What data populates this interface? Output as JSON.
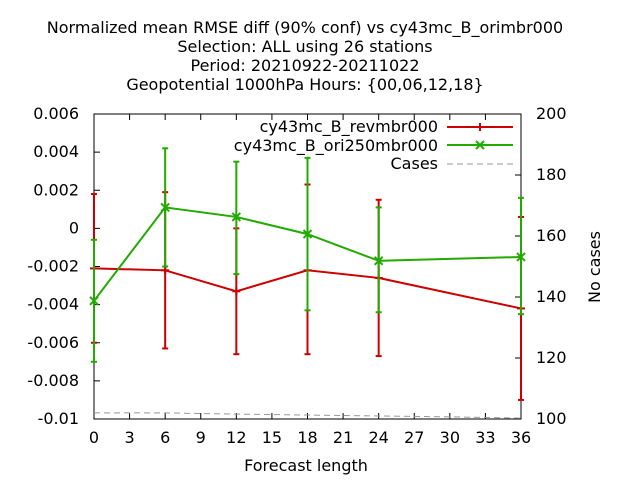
{
  "chart_data": {
    "type": "line",
    "title_lines": [
      "Normalized mean RMSE diff (90% conf) vs cy43mc_B_orimbr000",
      "Selection: ALL using    26 stations",
      "Period: 20210922-20211022",
      "Geopotential 1000hPa   Hours: {00,06,12,18}"
    ],
    "xlabel": "Forecast length",
    "ylabel": "",
    "y2label": "No cases",
    "xlim": [
      0,
      36
    ],
    "ylim": [
      -0.01,
      0.006
    ],
    "y2lim": [
      100,
      200
    ],
    "xticks": [
      0,
      3,
      6,
      9,
      12,
      15,
      18,
      21,
      24,
      27,
      30,
      33,
      36
    ],
    "xtick_labels": [
      "0",
      "3",
      "6",
      "9",
      "12",
      "15",
      "18",
      "21",
      "24",
      "27",
      "30",
      "33",
      "36"
    ],
    "yticks": [
      -0.01,
      -0.008,
      -0.006,
      -0.004,
      -0.002,
      0,
      0.002,
      0.004,
      0.006
    ],
    "ytick_labels": [
      "-0.01",
      "-0.008",
      "-0.006",
      "-0.004",
      "-0.002",
      "0",
      "0.002",
      "0.004",
      "0.006"
    ],
    "y2ticks": [
      100,
      120,
      140,
      160,
      180,
      200
    ],
    "y2tick_labels": [
      "100",
      "120",
      "140",
      "160",
      "180",
      "200"
    ],
    "grid": false,
    "legend_position": "top-right",
    "series": [
      {
        "name": "cy43mc_B_revmbr000",
        "color": "#cc0000",
        "marker": "plus",
        "axis": "y1",
        "x": [
          0,
          6,
          12,
          18,
          24,
          36
        ],
        "y": [
          -0.0021,
          -0.0022,
          -0.0033,
          -0.0022,
          -0.0026,
          -0.0042
        ],
        "err_low": [
          -0.006,
          -0.0063,
          -0.0066,
          -0.0066,
          -0.0067,
          -0.009
        ],
        "err_high": [
          0.0018,
          0.0019,
          0.0,
          0.0023,
          0.0015,
          0.0006
        ]
      },
      {
        "name": "cy43mc_B_ori250mbr000",
        "color": "#22aa00",
        "marker": "cross",
        "axis": "y1",
        "x": [
          0,
          6,
          12,
          18,
          24,
          36
        ],
        "y": [
          -0.0038,
          0.0011,
          0.0006,
          -0.0003,
          -0.0017,
          -0.0015
        ],
        "err_low": [
          -0.007,
          -0.002,
          -0.0024,
          -0.0043,
          -0.0044,
          -0.0045
        ],
        "err_high": [
          -0.0006,
          0.0042,
          0.0035,
          0.0037,
          0.0011,
          0.0016
        ]
      },
      {
        "name": "Cases",
        "color": "#999999",
        "marker": "none",
        "dashed": true,
        "axis": "y2",
        "x": [
          0,
          6,
          12,
          18,
          24,
          30,
          36
        ],
        "y": [
          102,
          102,
          101.6,
          101.3,
          101,
          100.7,
          100.3
        ]
      }
    ]
  }
}
